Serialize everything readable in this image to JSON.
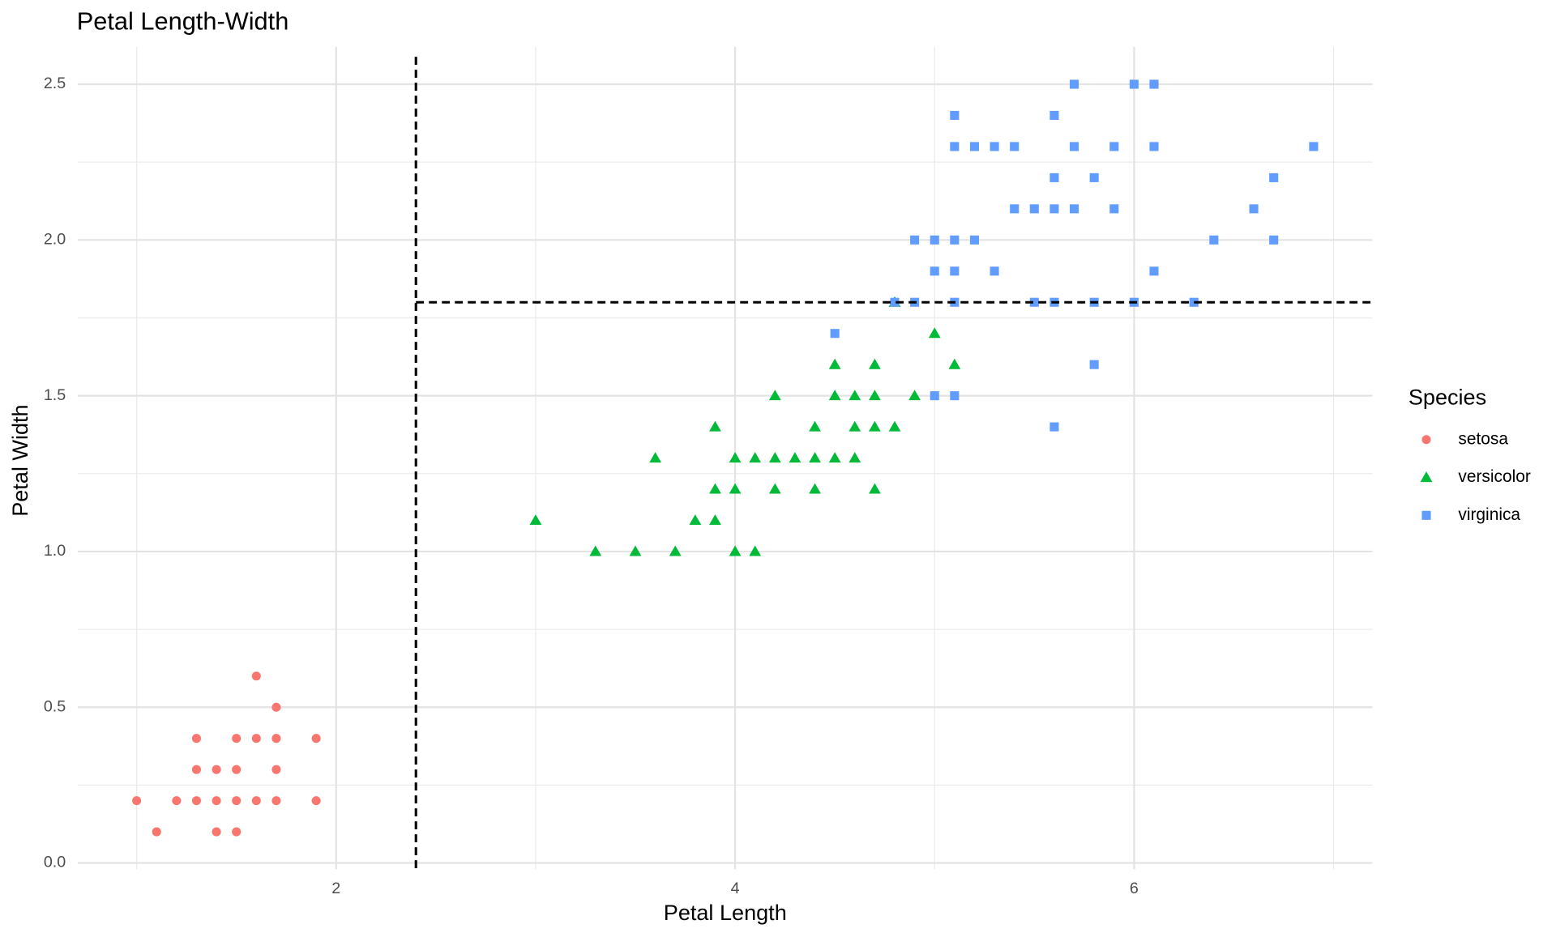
{
  "chart_data": {
    "type": "scatter",
    "title": "Petal Length-Width",
    "x_label": "Petal Length",
    "y_label": "Petal Width",
    "legend_title": "Species",
    "legend_position": "right",
    "grid": true,
    "xlim": [
      0.705,
      7.195
    ],
    "ylim": [
      -0.02,
      2.62
    ],
    "xticks": [
      2,
      4,
      6
    ],
    "yticks": [
      {
        "value": 0,
        "label": "0.0"
      },
      {
        "value": 0.5,
        "label": "0.5"
      },
      {
        "value": 1,
        "label": "1.0"
      },
      {
        "value": 1.5,
        "label": "1.5"
      },
      {
        "value": 2,
        "label": "2.0"
      },
      {
        "value": 2.5,
        "label": "2.5"
      }
    ],
    "reference_lines": {
      "x": 2.4,
      "y": 1.8
    },
    "series": [
      {
        "name": "setosa",
        "color": "#F8766D",
        "marker": "circle",
        "x": [
          1.0,
          1.1,
          1.2,
          1.3,
          1.3,
          1.3,
          1.4,
          1.4,
          1.4,
          1.5,
          1.5,
          1.5,
          1.5,
          1.6,
          1.6,
          1.6,
          1.7,
          1.7,
          1.7,
          1.7,
          1.9,
          1.9
        ],
        "values": [
          0.2,
          0.1,
          0.2,
          0.2,
          0.3,
          0.4,
          0.1,
          0.2,
          0.3,
          0.1,
          0.2,
          0.3,
          0.4,
          0.2,
          0.4,
          0.6,
          0.2,
          0.3,
          0.4,
          0.5,
          0.2,
          0.4
        ]
      },
      {
        "name": "versicolor",
        "color": "#00BA38",
        "marker": "triangle",
        "x": [
          3.0,
          3.3,
          3.5,
          3.6,
          3.7,
          3.8,
          3.9,
          3.9,
          3.9,
          4.0,
          4.0,
          4.0,
          4.1,
          4.1,
          4.2,
          4.2,
          4.2,
          4.3,
          4.4,
          4.4,
          4.4,
          4.5,
          4.5,
          4.5,
          4.6,
          4.6,
          4.6,
          4.7,
          4.7,
          4.7,
          4.7,
          4.8,
          4.8,
          4.9,
          5.0,
          5.1
        ],
        "values": [
          1.1,
          1.0,
          1.0,
          1.3,
          1.0,
          1.1,
          1.1,
          1.2,
          1.4,
          1.0,
          1.2,
          1.3,
          1.0,
          1.3,
          1.2,
          1.3,
          1.5,
          1.3,
          1.2,
          1.3,
          1.4,
          1.3,
          1.5,
          1.6,
          1.3,
          1.4,
          1.5,
          1.2,
          1.4,
          1.5,
          1.6,
          1.4,
          1.8,
          1.5,
          1.7,
          1.6
        ]
      },
      {
        "name": "virginica",
        "color": "#619CFF",
        "marker": "square",
        "x": [
          4.5,
          4.8,
          4.9,
          4.9,
          5.0,
          5.0,
          5.0,
          5.1,
          5.1,
          5.1,
          5.1,
          5.1,
          5.1,
          5.2,
          5.2,
          5.3,
          5.3,
          5.4,
          5.4,
          5.5,
          5.5,
          5.6,
          5.6,
          5.6,
          5.6,
          5.6,
          5.7,
          5.7,
          5.7,
          5.8,
          5.8,
          5.8,
          5.9,
          5.9,
          6.0,
          6.0,
          6.1,
          6.1,
          6.1,
          6.3,
          6.4,
          6.6,
          6.7,
          6.7,
          6.9
        ],
        "values": [
          1.7,
          1.8,
          1.8,
          2.0,
          1.5,
          1.9,
          2.0,
          1.5,
          1.8,
          1.9,
          2.0,
          2.3,
          2.4,
          2.0,
          2.3,
          1.9,
          2.3,
          2.1,
          2.3,
          1.8,
          2.1,
          1.4,
          1.8,
          2.1,
          2.2,
          2.4,
          2.1,
          2.3,
          2.5,
          1.6,
          1.8,
          2.2,
          2.1,
          2.3,
          1.8,
          2.5,
          1.9,
          2.3,
          2.5,
          1.8,
          2.0,
          2.1,
          2.0,
          2.2,
          2.3
        ]
      }
    ]
  }
}
